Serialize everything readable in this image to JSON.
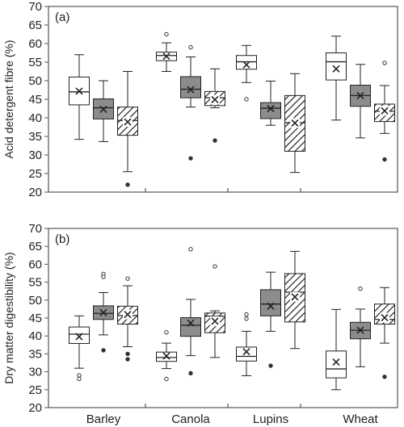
{
  "categories": [
    "Barley",
    "Canola",
    "Lupins",
    "Wheat"
  ],
  "colors": {
    "series_a": "#ffffff",
    "series_b": "#8c8c8c",
    "series_c": "hatch",
    "stroke": "#222222",
    "outlier_fill": "#ffffff",
    "outlier_dark": "#333333"
  },
  "chart_data": [
    {
      "type": "box",
      "panel_label": "(a)",
      "ylabel": "Acid detergent fibre (%)",
      "ylim": [
        20,
        70
      ],
      "yticks": [
        20,
        25,
        30,
        35,
        40,
        45,
        50,
        55,
        60,
        65,
        70
      ],
      "categories": [
        "Barley",
        "Canola",
        "Lupins",
        "Wheat"
      ],
      "series": [
        {
          "fill": "white",
          "boxes": [
            {
              "min": 34.2,
              "q1": 43.5,
              "median": 47.0,
              "q3": 51.0,
              "max": 57.0,
              "mean": 47.2,
              "outliers": []
            },
            {
              "min": 52.5,
              "q1": 55.4,
              "median": 56.8,
              "q3": 57.7,
              "max": 60.2,
              "mean": 56.6,
              "outliers": [
                62.5
              ]
            },
            {
              "min": 49.5,
              "q1": 53.1,
              "median": 55.1,
              "q3": 56.8,
              "max": 59.5,
              "mean": 54.3,
              "outliers": [
                45.0
              ]
            },
            {
              "min": 39.4,
              "q1": 50.2,
              "median": 55.1,
              "q3": 57.5,
              "max": 62.0,
              "mean": 53.2,
              "outliers": []
            }
          ]
        },
        {
          "fill": "gray",
          "boxes": [
            {
              "min": 33.6,
              "q1": 39.7,
              "median": 42.7,
              "q3": 45.1,
              "max": 50.0,
              "mean": 42.3,
              "outliers": []
            },
            {
              "min": 42.9,
              "q1": 45.4,
              "median": 47.7,
              "q3": 51.1,
              "max": 56.4,
              "mean": 47.6,
              "outliers": [
                59.0,
                29.1
              ]
            },
            {
              "min": 38.0,
              "q1": 39.8,
              "median": 42.6,
              "q3": 44.1,
              "max": 49.9,
              "mean": 42.5,
              "outliers": []
            },
            {
              "min": 34.6,
              "q1": 43.1,
              "median": 46.0,
              "q3": 48.8,
              "max": 54.4,
              "mean": 46.0,
              "outliers": []
            }
          ]
        },
        {
          "fill": "hatched",
          "boxes": [
            {
              "min": 25.5,
              "q1": 35.3,
              "median": 39.3,
              "q3": 42.9,
              "max": 52.5,
              "mean": 38.9,
              "outliers": [
                22.0
              ]
            },
            {
              "min": 42.7,
              "q1": 43.3,
              "median": 45.4,
              "q3": 47.1,
              "max": 53.2,
              "mean": 44.9,
              "outliers": [
                33.9
              ]
            },
            {
              "min": 25.3,
              "q1": 31.0,
              "median": 38.7,
              "q3": 46.0,
              "max": 51.9,
              "mean": 38.6,
              "outliers": []
            },
            {
              "min": 35.8,
              "q1": 39.0,
              "median": 41.8,
              "q3": 43.7,
              "max": 48.7,
              "mean": 41.9,
              "outliers": [
                54.8,
                28.8
              ]
            }
          ]
        }
      ]
    },
    {
      "type": "box",
      "panel_label": "(b)",
      "ylabel": "Dry matter digestibility (%)",
      "ylim": [
        20,
        70
      ],
      "yticks": [
        20,
        25,
        30,
        35,
        40,
        45,
        50,
        55,
        60,
        65,
        70
      ],
      "categories": [
        "Barley",
        "Canola",
        "Lupins",
        "Wheat"
      ],
      "series": [
        {
          "fill": "white",
          "boxes": [
            {
              "min": 31.0,
              "q1": 37.9,
              "median": 40.5,
              "q3": 42.5,
              "max": 45.6,
              "mean": 39.8,
              "outliers": [
                29.0,
                28.0
              ]
            },
            {
              "min": 30.9,
              "q1": 32.9,
              "median": 34.0,
              "q3": 35.5,
              "max": 38.0,
              "mean": 34.4,
              "outliers": [
                41.0,
                28.0
              ]
            },
            {
              "min": 28.9,
              "q1": 33.0,
              "median": 34.3,
              "q3": 36.9,
              "max": 41.3,
              "mean": 35.6,
              "outliers": [
                46.0,
                44.8
              ]
            },
            {
              "min": 25.0,
              "q1": 28.3,
              "median": 30.8,
              "q3": 35.8,
              "max": 47.4,
              "mean": 32.7,
              "outliers": []
            }
          ]
        },
        {
          "fill": "gray",
          "boxes": [
            {
              "min": 40.3,
              "q1": 44.6,
              "median": 46.3,
              "q3": 48.4,
              "max": 52.1,
              "mean": 46.5,
              "outliers": [
                57.3,
                56.5,
                36.0
              ]
            },
            {
              "min": 34.5,
              "q1": 39.9,
              "median": 43.0,
              "q3": 45.1,
              "max": 50.2,
              "mean": 43.6,
              "outliers": [
                64.2,
                29.6
              ]
            },
            {
              "min": 41.3,
              "q1": 45.6,
              "median": 48.9,
              "q3": 52.9,
              "max": 57.8,
              "mean": 48.3,
              "outliers": [
                31.7
              ]
            },
            {
              "min": 31.4,
              "q1": 39.2,
              "median": 41.6,
              "q3": 43.8,
              "max": 47.5,
              "mean": 41.6,
              "outliers": [
                53.2
              ]
            }
          ]
        },
        {
          "fill": "hatched",
          "boxes": [
            {
              "min": 37.0,
              "q1": 43.3,
              "median": 45.7,
              "q3": 48.3,
              "max": 54.0,
              "mean": 46.0,
              "outliers": [
                56.0,
                35.0,
                33.5
              ]
            },
            {
              "min": 34.0,
              "q1": 40.9,
              "median": 45.5,
              "q3": 46.4,
              "max": 47.0,
              "mean": 44.1,
              "outliers": [
                59.4
              ]
            },
            {
              "min": 36.5,
              "q1": 43.9,
              "median": 52.2,
              "q3": 57.4,
              "max": 63.6,
              "mean": 50.9,
              "outliers": []
            },
            {
              "min": 38.0,
              "q1": 43.3,
              "median": 44.6,
              "q3": 48.9,
              "max": 53.5,
              "mean": 45.1,
              "outliers": [
                28.6
              ]
            }
          ]
        }
      ]
    }
  ]
}
